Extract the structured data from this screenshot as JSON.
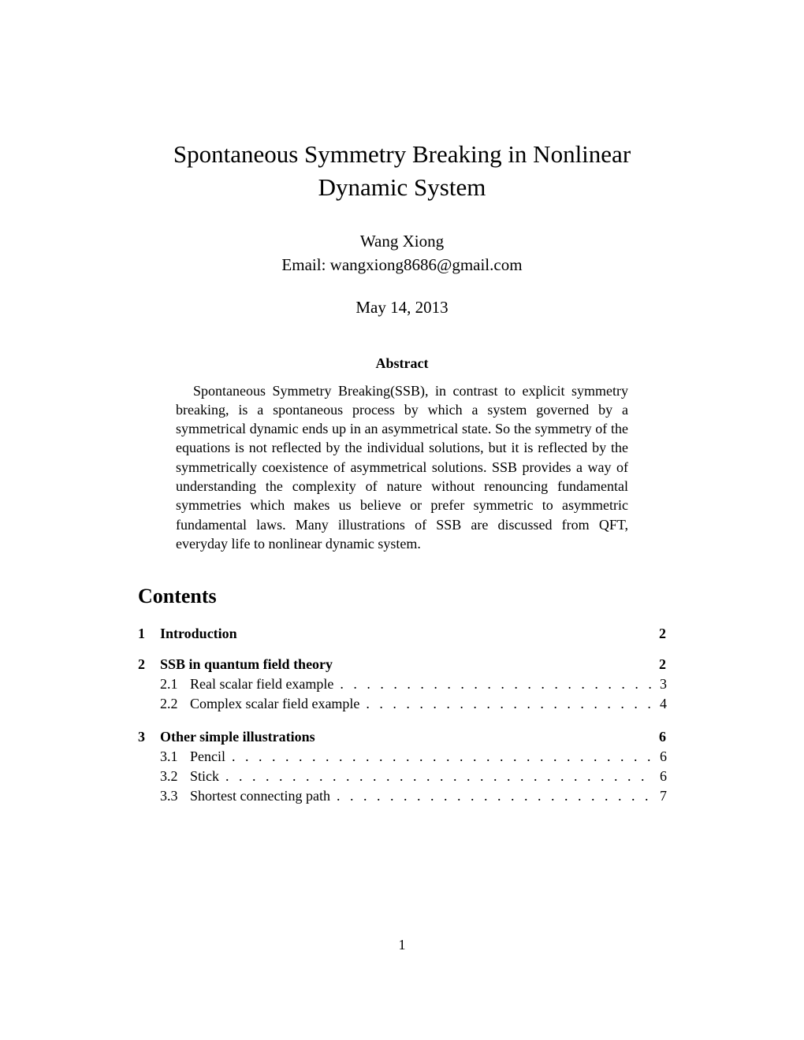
{
  "title": "Spontaneous Symmetry Breaking in Nonlinear Dynamic System",
  "author_name": "Wang Xiong",
  "author_email_label": "Email: wangxiong8686@gmail.com",
  "date": "May 14, 2013",
  "abstract_heading": "Abstract",
  "abstract_text": "Spontaneous Symmetry Breaking(SSB), in contrast to explicit symmetry breaking, is a spontaneous process by which a system governed by a symmetrical dynamic ends up in an asymmetrical state. So the symmetry of the equations is not reflected by the individual solutions, but it is reflected by the symmetrically coexistence of asymmetrical solutions. SSB provides a way of understanding the complexity of nature without renouncing fundamental symmetries which makes us believe or prefer symmetric to asymmetric fundamental laws. Many illustrations of SSB are discussed from QFT, everyday life to nonlinear dynamic system.",
  "contents_heading": "Contents",
  "toc": {
    "sections": [
      {
        "num": "1",
        "title": "Introduction",
        "page": "2",
        "subs": []
      },
      {
        "num": "2",
        "title": "SSB in quantum field theory",
        "page": "2",
        "subs": [
          {
            "num": "2.1",
            "title": "Real scalar field example",
            "page": "3"
          },
          {
            "num": "2.2",
            "title": "Complex scalar field example",
            "page": "4"
          }
        ]
      },
      {
        "num": "3",
        "title": "Other simple illustrations",
        "page": "6",
        "subs": [
          {
            "num": "3.1",
            "title": "Pencil",
            "page": "6"
          },
          {
            "num": "3.2",
            "title": "Stick",
            "page": "6"
          },
          {
            "num": "3.3",
            "title": "Shortest connecting path",
            "page": "7"
          }
        ]
      }
    ]
  },
  "page_number": "1",
  "dots": ". . . . . . . . . . . . . . . . . . . . . . . . . . . . . . . . . . . . . . . . . . . . . . . . . . . . . . ."
}
